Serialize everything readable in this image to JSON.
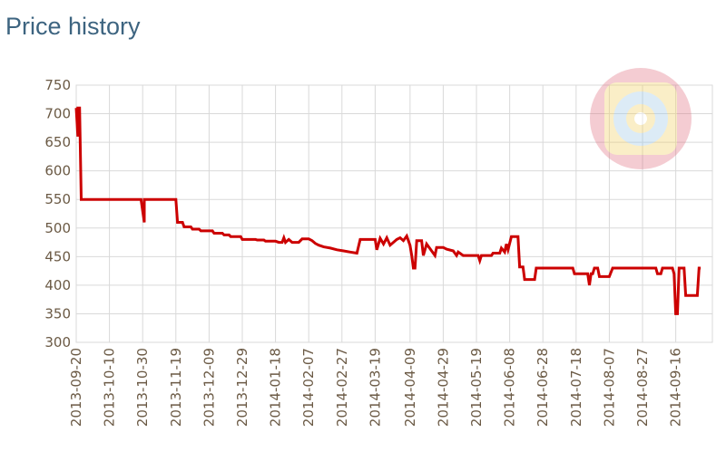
{
  "page": {
    "title": "Price history"
  },
  "colors": {
    "series": "#cc0000",
    "grid": "#d9d9d9",
    "axis_text": "#6b5a45",
    "title": "#3d6480"
  },
  "watermark_icon": "target-logo-icon",
  "chart_data": {
    "type": "line",
    "title": "Price history",
    "xlabel": "",
    "ylabel": "",
    "ylim": [
      300,
      750
    ],
    "xlim": [
      "2013-09-20",
      "2014-10-06"
    ],
    "yticks": [
      300,
      350,
      400,
      450,
      500,
      550,
      600,
      650,
      700,
      750
    ],
    "xticks": [
      "2013-09-20",
      "2013-10-10",
      "2013-10-30",
      "2013-11-19",
      "2013-12-09",
      "2013-12-29",
      "2014-01-18",
      "2014-02-07",
      "2014-02-27",
      "2014-03-19",
      "2014-04-09",
      "2014-04-29",
      "2014-05-19",
      "2014-06-08",
      "2014-06-28",
      "2014-07-18",
      "2014-08-07",
      "2014-08-27",
      "2014-09-16"
    ],
    "grid": true,
    "legend": "none",
    "step": true,
    "series": [
      {
        "points": [
          [
            "2013-09-20",
            710
          ],
          [
            "2013-09-21",
            660
          ],
          [
            "2013-09-21",
            710
          ],
          [
            "2013-09-22",
            710
          ],
          [
            "2013-09-23",
            550
          ],
          [
            "2013-10-29",
            550
          ],
          [
            "2013-10-31",
            510
          ],
          [
            "2013-10-31",
            550
          ],
          [
            "2013-11-19",
            550
          ],
          [
            "2013-11-20",
            510
          ],
          [
            "2013-11-23",
            510
          ],
          [
            "2013-11-24",
            502
          ],
          [
            "2013-11-28",
            502
          ],
          [
            "2013-11-29",
            498
          ],
          [
            "2013-12-03",
            498
          ],
          [
            "2013-12-04",
            495
          ],
          [
            "2013-12-11",
            495
          ],
          [
            "2013-12-12",
            491
          ],
          [
            "2013-12-17",
            491
          ],
          [
            "2013-12-18",
            488
          ],
          [
            "2013-12-21",
            488
          ],
          [
            "2013-12-22",
            485
          ],
          [
            "2013-12-28",
            485
          ],
          [
            "2013-12-29",
            480
          ],
          [
            "2014-01-06",
            480
          ],
          [
            "2014-01-07",
            479
          ],
          [
            "2014-01-11",
            479
          ],
          [
            "2014-01-12",
            477
          ],
          [
            "2014-01-18",
            477
          ],
          [
            "2014-01-20",
            475
          ],
          [
            "2014-01-22",
            475
          ],
          [
            "2014-01-23",
            483
          ],
          [
            "2014-01-24",
            475
          ],
          [
            "2014-01-26",
            480
          ],
          [
            "2014-01-28",
            475
          ],
          [
            "2014-02-01",
            475
          ],
          [
            "2014-02-03",
            481
          ],
          [
            "2014-02-07",
            481
          ],
          [
            "2014-02-09",
            478
          ],
          [
            "2014-02-11",
            473
          ],
          [
            "2014-02-13",
            470
          ],
          [
            "2014-02-16",
            467
          ],
          [
            "2014-02-20",
            465
          ],
          [
            "2014-02-24",
            462
          ],
          [
            "2014-02-28",
            460
          ],
          [
            "2014-03-04",
            458
          ],
          [
            "2014-03-08",
            456
          ],
          [
            "2014-03-10",
            480
          ],
          [
            "2014-03-19",
            480
          ],
          [
            "2014-03-20",
            462
          ],
          [
            "2014-03-22",
            482
          ],
          [
            "2014-03-24",
            472
          ],
          [
            "2014-03-26",
            483
          ],
          [
            "2014-03-28",
            470
          ],
          [
            "2014-04-01",
            480
          ],
          [
            "2014-04-03",
            483
          ],
          [
            "2014-04-05",
            478
          ],
          [
            "2014-04-07",
            486
          ],
          [
            "2014-04-09",
            470
          ],
          [
            "2014-04-10",
            452
          ],
          [
            "2014-04-11",
            430
          ],
          [
            "2014-04-12",
            430
          ],
          [
            "2014-04-13",
            478
          ],
          [
            "2014-04-16",
            478
          ],
          [
            "2014-04-17",
            452
          ],
          [
            "2014-04-19",
            472
          ],
          [
            "2014-04-22",
            460
          ],
          [
            "2014-04-24",
            452
          ],
          [
            "2014-04-25",
            466
          ],
          [
            "2014-04-29",
            466
          ],
          [
            "2014-05-01",
            463
          ],
          [
            "2014-05-05",
            460
          ],
          [
            "2014-05-07",
            452
          ],
          [
            "2014-05-08",
            458
          ],
          [
            "2014-05-11",
            452
          ],
          [
            "2014-05-20",
            452
          ],
          [
            "2014-05-21",
            443
          ],
          [
            "2014-05-22",
            452
          ],
          [
            "2014-05-28",
            452
          ],
          [
            "2014-05-29",
            456
          ],
          [
            "2014-06-02",
            456
          ],
          [
            "2014-06-03",
            465
          ],
          [
            "2014-06-05",
            458
          ],
          [
            "2014-06-06",
            472
          ],
          [
            "2014-06-07",
            462
          ],
          [
            "2014-06-09",
            485
          ],
          [
            "2014-06-13",
            485
          ],
          [
            "2014-06-14",
            432
          ],
          [
            "2014-06-16",
            432
          ],
          [
            "2014-06-17",
            410
          ],
          [
            "2014-06-23",
            410
          ],
          [
            "2014-06-24",
            430
          ],
          [
            "2014-07-16",
            430
          ],
          [
            "2014-07-17",
            420
          ],
          [
            "2014-07-25",
            420
          ],
          [
            "2014-07-26",
            400
          ],
          [
            "2014-07-27",
            420
          ],
          [
            "2014-07-28",
            420
          ],
          [
            "2014-07-29",
            430
          ],
          [
            "2014-07-31",
            430
          ],
          [
            "2014-08-01",
            415
          ],
          [
            "2014-08-07",
            415
          ],
          [
            "2014-08-09",
            430
          ],
          [
            "2014-09-04",
            430
          ],
          [
            "2014-09-05",
            420
          ],
          [
            "2014-09-07",
            420
          ],
          [
            "2014-09-08",
            430
          ],
          [
            "2014-09-14",
            430
          ],
          [
            "2014-09-15",
            420
          ],
          [
            "2014-09-16",
            350
          ],
          [
            "2014-09-17",
            350
          ],
          [
            "2014-09-18",
            430
          ],
          [
            "2014-09-21",
            430
          ],
          [
            "2014-09-22",
            382
          ],
          [
            "2014-09-29",
            382
          ],
          [
            "2014-09-30",
            430
          ],
          [
            "2014-10-01",
            430
          ]
        ]
      }
    ]
  }
}
